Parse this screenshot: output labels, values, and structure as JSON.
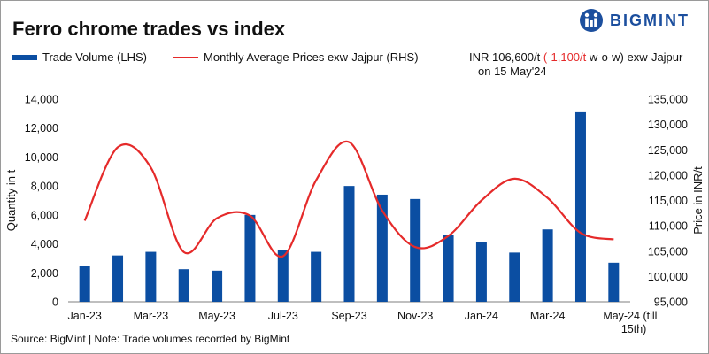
{
  "header": {
    "title": "Ferro chrome trades vs index",
    "brand": "BIGMINT"
  },
  "price_note": {
    "prefix": "INR 106,600/t",
    "change": "(-1,100/t",
    "suffix": "w-o-w)  exw-Jajpur",
    "date": "on 15 May'24"
  },
  "footer": {
    "source": "Source: BigMint | Note: Trade volumes recorded by BigMint"
  },
  "colors": {
    "bar": "#0b4ea2",
    "line": "#e52a2a",
    "brand": "#1c4f9e"
  },
  "chart_data": {
    "type": "bar",
    "title": "Ferro chrome trades vs index",
    "categories": [
      "Jan-23",
      "Feb-23",
      "Mar-23",
      "Apr-23",
      "May-23",
      "Jun-23",
      "Jul-23",
      "Aug-23",
      "Sep-23",
      "Oct-23",
      "Nov-23",
      "Dec-23",
      "Jan-24",
      "Feb-24",
      "Mar-24",
      "Apr-24",
      "May-24"
    ],
    "x_tick_labels": [
      "Jan-23",
      "Mar-23",
      "May-23",
      "Jul-23",
      "Sep-23",
      "Nov-23",
      "Jan-24",
      "Mar-24",
      "May-24 (till",
      "15th)"
    ],
    "series": [
      {
        "name": "Trade Volume (LHS)",
        "type": "bar",
        "axis": "left",
        "values": [
          2450,
          3200,
          3450,
          2250,
          2150,
          6000,
          3600,
          3450,
          8000,
          7400,
          7100,
          4600,
          4150,
          3400,
          5000,
          13150,
          2700
        ]
      },
      {
        "name": "Monthly Average Prices exw-Jajpur (RHS)",
        "type": "line",
        "axis": "right",
        "values": [
          111000,
          125500,
          121500,
          104800,
          111500,
          112000,
          104000,
          119000,
          126500,
          113000,
          105800,
          108000,
          115000,
          119300,
          115500,
          108600,
          107300
        ]
      }
    ],
    "ylabel_left": "Quantity in t",
    "ylabel_right": "Price in INR/t",
    "ylim_left": [
      0,
      14000
    ],
    "ylim_right": [
      95000,
      135000
    ],
    "yticks_left": [
      "0",
      "2,000",
      "4,000",
      "6,000",
      "8,000",
      "10,000",
      "12,000",
      "14,000"
    ],
    "yticks_right": [
      "95,000",
      "100,000",
      "105,000",
      "110,000",
      "115,000",
      "120,000",
      "125,000",
      "130,000",
      "135,000"
    ],
    "grid": false
  }
}
